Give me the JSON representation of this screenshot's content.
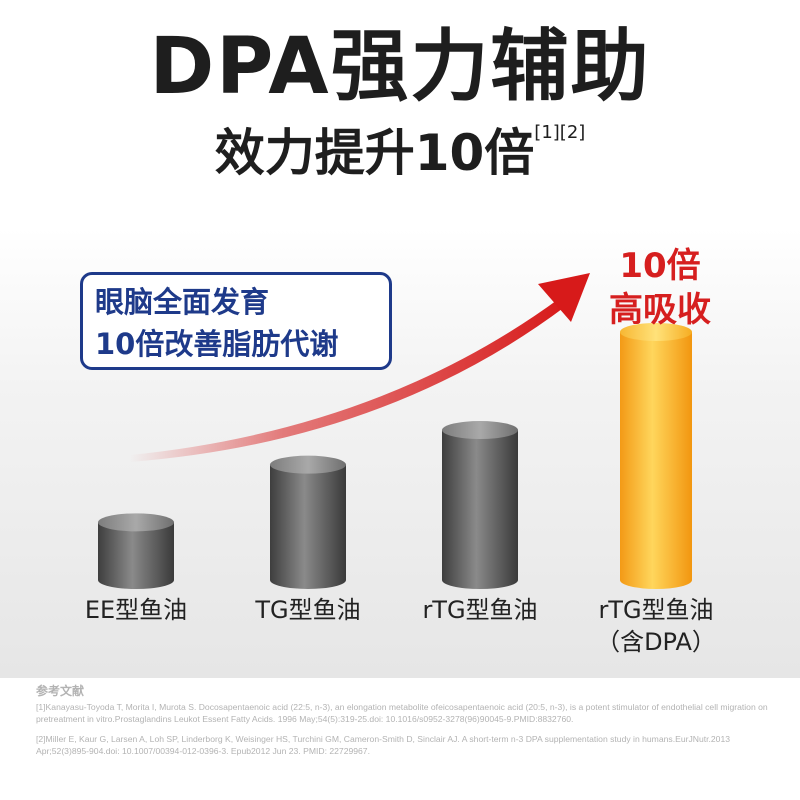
{
  "header": {
    "title": "DPA强力辅助",
    "subtitle": "效力提升10倍",
    "subtitle_refs": "[1][2]"
  },
  "callout": {
    "line1": "眼脑全面发育",
    "line2": "10倍改善脂肪代谢"
  },
  "highlight": {
    "line1": "10倍",
    "line2": "高吸收"
  },
  "chart_data": {
    "type": "bar",
    "categories": [
      "EE型鱼油",
      "TG型鱼油",
      "rTG型鱼油",
      "rTG型鱼油（含DPA）"
    ],
    "category_lines": [
      [
        "EE型鱼油"
      ],
      [
        "TG型鱼油"
      ],
      [
        "rTG型鱼油"
      ],
      [
        "rTG型鱼油",
        "（含DPA）"
      ]
    ],
    "values": [
      1.0,
      2.0,
      2.6,
      4.3
    ],
    "ylim": [
      0,
      4.5
    ],
    "annotations": [
      "10倍",
      "高吸收"
    ],
    "colors": {
      "gray_bar": "#666666",
      "highlight_bar": "#f5a623",
      "arrow": "#d71a1a"
    }
  },
  "references": {
    "title": "参考文献",
    "items": [
      "[1]Kanayasu-Toyoda T, Morita I, Murota S. Docosapentaenoic acid (22:5, n-3), an elongation metabolite ofeicosapentaenoic acid (20:5, n-3), is a potent stimulator of endothelial cell migration on pretreatment in vitro.Prostaglandins Leukot Essent Fatty Acids. 1996 May;54(5):319-25.doi: 10.1016/s0952-3278(96)90045-9.PMID:8832760.",
      "[2]Miller E, Kaur G, Larsen A, Loh SP, Linderborg K, Weisinger HS, Turchini GM, Cameron-Smith D, Sinclair AJ. A short-term n-3 DPA supplementation study in humans.EurJNutr.2013 Apr;52(3)895-904.doi: 10.1007/00394-012-0396-3. Epub2012 Jun 23. PMID: 22729967."
    ]
  }
}
